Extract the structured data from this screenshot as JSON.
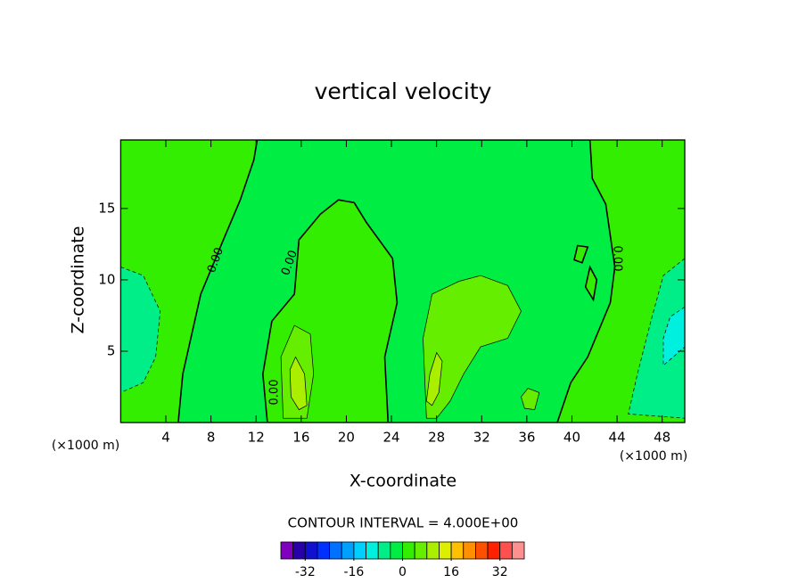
{
  "chart_data": {
    "type": "contour",
    "title": "vertical velocity",
    "x_label": "X-coordinate",
    "y_label": "Z-coordinate",
    "x_unit_label": "(×1000 m)",
    "x_unit_label_right": "(×1000 m)",
    "xlim": [
      0,
      50
    ],
    "ylim": [
      0,
      19.8
    ],
    "xticks": [
      4,
      8,
      12,
      16,
      20,
      24,
      28,
      32,
      36,
      40,
      44,
      48
    ],
    "yticks": [
      5,
      10,
      15
    ],
    "contour_labels": [
      "0.00",
      "0.00",
      "0.00",
      "0.00"
    ],
    "contour_interval": "CONTOUR INTERVAL = 4.000E+00",
    "regions": [
      {
        "value": 2,
        "x": [
          0,
          50,
          50,
          0
        ],
        "y": [
          0,
          0,
          19.8,
          19.8
        ]
      },
      {
        "value": -2,
        "x": [
          5.1,
          5.5,
          7.1,
          9.1,
          10.6,
          11.8,
          12.1,
          41.6,
          41.8,
          43.0,
          43.8,
          43.4,
          41.4,
          39.9,
          38.7
        ],
        "y": [
          0,
          3.4,
          9.0,
          12.8,
          15.6,
          18.4,
          19.8,
          19.8,
          17.1,
          15.3,
          10.9,
          8.4,
          4.6,
          2.8,
          0
        ]
      },
      {
        "value": 2,
        "x": [
          13.0,
          12.6,
          13.4,
          15.4,
          15.8,
          17.7,
          19.3,
          20.7,
          21.8,
          24.1,
          24.5,
          23.4,
          23.7
        ],
        "y": [
          0,
          3.4,
          7.1,
          9.0,
          12.8,
          14.6,
          15.6,
          15.4,
          14.0,
          11.5,
          8.4,
          4.6,
          0
        ]
      },
      {
        "value": 6,
        "x": [
          14.4,
          14.2,
          15.4,
          16.8,
          17.1,
          16.5
        ],
        "y": [
          0.3,
          4.6,
          6.8,
          6.2,
          3.4,
          0.3
        ]
      },
      {
        "value": 10,
        "x": [
          15.0,
          15.5,
          16.3,
          16.5,
          15.8,
          15.1
        ],
        "y": [
          3.7,
          4.6,
          3.4,
          1.2,
          0.9,
          1.8
        ]
      },
      {
        "value": 6,
        "x": [
          27.1,
          26.8,
          27.6,
          30.0,
          31.9,
          34.3,
          35.5,
          34.3,
          31.9,
          30.4,
          29.2,
          28.0
        ],
        "y": [
          0.3,
          5.9,
          9.0,
          9.9,
          10.3,
          9.6,
          7.8,
          5.9,
          5.3,
          3.4,
          1.5,
          0.3
        ]
      },
      {
        "value": 10,
        "x": [
          27.1,
          27.4,
          28.0,
          28.5,
          28.2,
          27.6
        ],
        "y": [
          1.5,
          3.4,
          4.9,
          4.3,
          2.1,
          1.2
        ]
      },
      {
        "value": 6,
        "x": [
          35.5,
          36.1,
          37.1,
          36.7,
          35.8
        ],
        "y": [
          1.8,
          2.4,
          2.1,
          0.9,
          1.0
        ]
      },
      {
        "value": -6,
        "x": [
          0,
          2.0,
          3.5,
          3.1,
          2.0,
          0
        ],
        "y": [
          10.9,
          10.3,
          7.8,
          4.6,
          2.8,
          2.1
        ]
      },
      {
        "value": -6,
        "x": [
          50,
          48.1,
          47.0,
          45.8,
          45.0,
          50
        ],
        "y": [
          11.5,
          10.3,
          7.1,
          3.4,
          0.6,
          0.3
        ]
      },
      {
        "value": -10,
        "x": [
          50,
          48.7,
          48.1,
          48.1,
          50
        ],
        "y": [
          8.1,
          7.4,
          5.9,
          4.0,
          5.3
        ]
      },
      {
        "value": 2,
        "x": [
          41.6,
          42.2,
          41.9,
          41.2
        ],
        "y": [
          10.9,
          10.0,
          8.6,
          9.5
        ]
      },
      {
        "value": 2,
        "x": [
          40.5,
          41.4,
          40.9,
          40.2
        ],
        "y": [
          12.4,
          12.3,
          11.2,
          11.4
        ]
      }
    ],
    "colorbar": {
      "bounds": [
        -40,
        -36,
        -32,
        -28,
        -24,
        -20,
        -16,
        -12,
        -8,
        -4,
        0,
        4,
        8,
        12,
        16,
        20,
        24,
        28,
        32,
        36,
        40
      ],
      "colors": [
        "#8000c0",
        "#2800a8",
        "#1010d0",
        "#0030ff",
        "#0070ff",
        "#00a0ff",
        "#00d0ff",
        "#00f0e0",
        "#00ee88",
        "#00ee44",
        "#33ee00",
        "#66ee00",
        "#aaee00",
        "#ddee00",
        "#ffc000",
        "#ff9000",
        "#ff5000",
        "#ff2000",
        "#ff5050",
        "#ff9090"
      ],
      "ticks": [
        -32,
        -16,
        0,
        16,
        32
      ]
    }
  }
}
